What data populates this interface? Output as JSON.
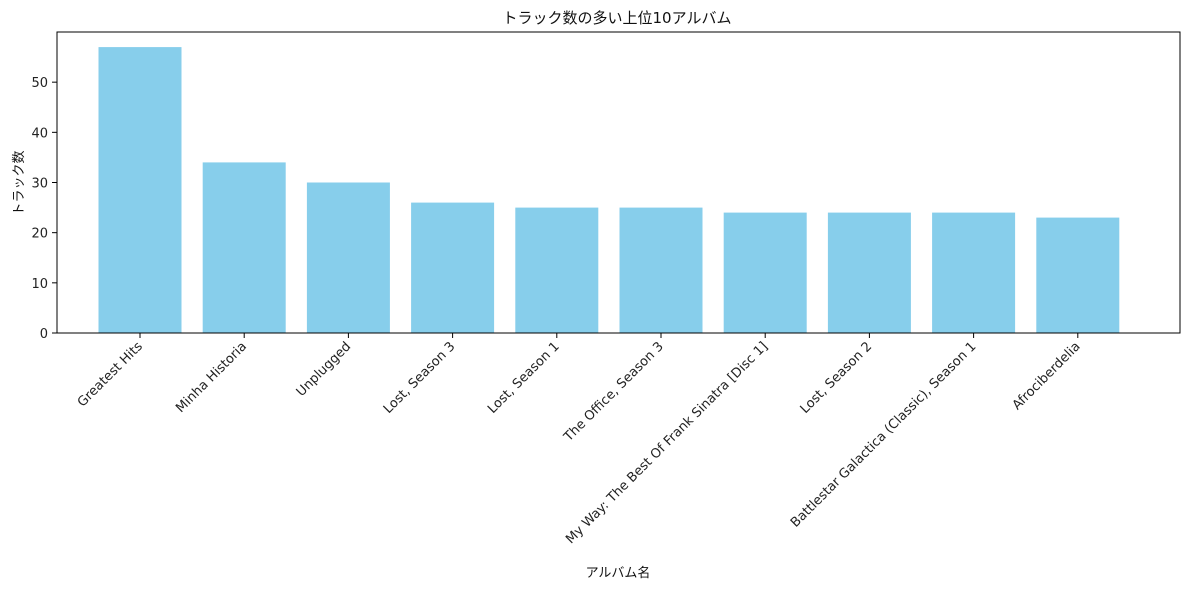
{
  "chart_data": {
    "type": "bar",
    "title": "トラック数の多い上位10アルバム",
    "xlabel": "アルバム名",
    "ylabel": "トラック数",
    "categories": [
      "Greatest Hits",
      "Minha Historia",
      "Unplugged",
      "Lost, Season 3",
      "Lost, Season 1",
      "The Office, Season 3",
      "My Way: The Best Of Frank Sinatra [Disc 1]",
      "Lost, Season 2",
      "Battlestar Galactica (Classic), Season 1",
      "Afrociberdelia"
    ],
    "values": [
      57,
      34,
      30,
      26,
      25,
      25,
      24,
      24,
      24,
      23
    ],
    "ylim": [
      0,
      60
    ],
    "yticks": [
      0,
      10,
      20,
      30,
      40,
      50
    ],
    "grid": false,
    "bar_color": "#87CEEB"
  }
}
